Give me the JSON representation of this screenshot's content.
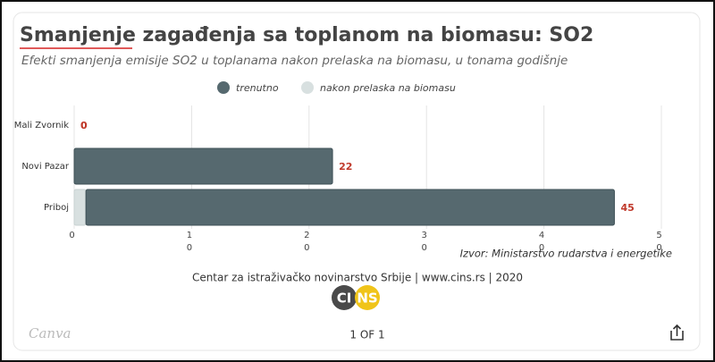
{
  "chart_data": {
    "type": "stacked-barh",
    "title": "Smanjenje zagađenja sa toplanom na biomasu: SO2",
    "subtitle": "Efekti smanjenja emisije SO2 u toplanama nakon prelaska na biomasu, u tonama godišnje",
    "categories": [
      "Mali Zvornik",
      "Novi Pazar",
      "Priboj"
    ],
    "series": [
      {
        "name": "trenutno",
        "color": "#56696f",
        "values": [
          0,
          22,
          45
        ]
      },
      {
        "name": "nakon prelaska na biomasu",
        "color": "#d8e0e0",
        "values": [
          0,
          0,
          1
        ]
      }
    ],
    "xlim": [
      0,
      50
    ],
    "xticks": [
      0,
      10,
      20,
      30,
      40,
      50
    ],
    "grid": true,
    "value_label_color": "#c0392b",
    "source": "Izvor: Ministarstvo rudarstva i energetike",
    "credit": "Centar za istraživačko novinarstvo Srbije | www.cins.rs | 2020",
    "logo": [
      "CI",
      "NS"
    ]
  },
  "viewer": {
    "brand": "Canva",
    "page": "1 OF 1"
  }
}
